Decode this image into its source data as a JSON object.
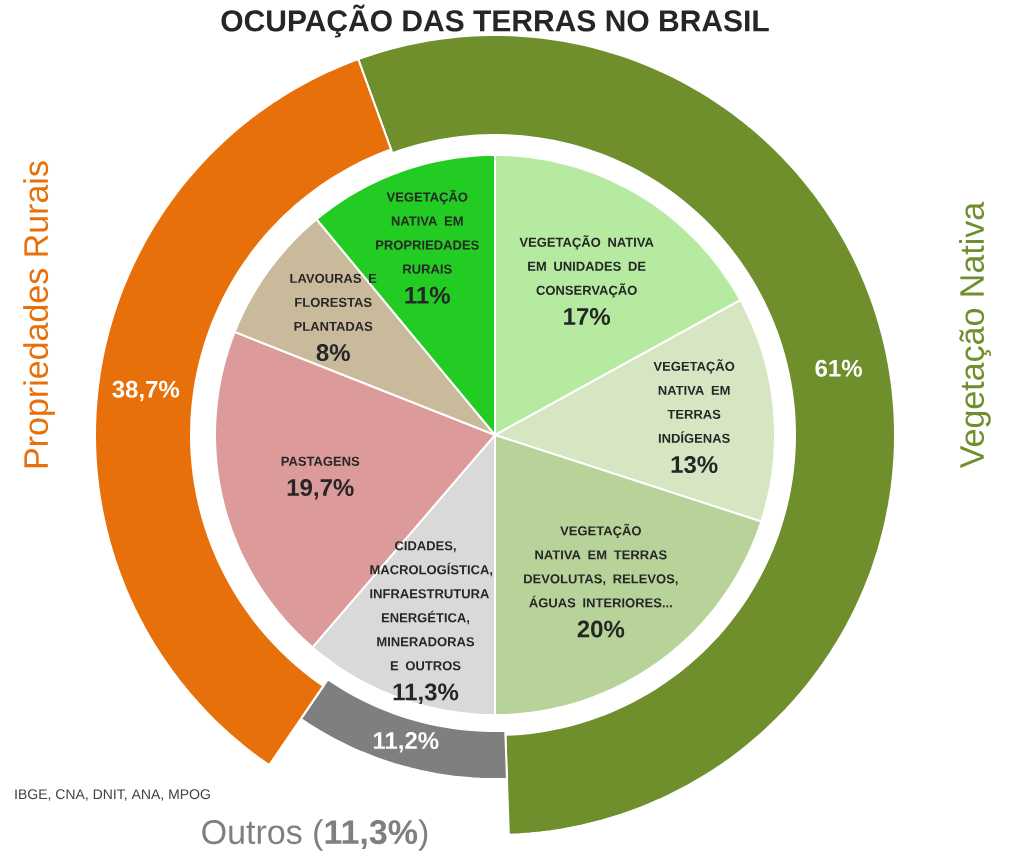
{
  "chart_data": [
    {
      "type": "pie",
      "title": "OCUPAÇÃO DAS TERRAS NO BRASIL",
      "categories": [
        "VEGETAÇÃO NATIVA EM UNIDADES DE CONSERVAÇÃO",
        "VEGETAÇÃO NATIVA EM TERRAS INDÍGENAS",
        "VEGETAÇÃO NATIVA EM TERRAS DEVOLUTAS, RELEVOS, ÁGUAS INTERIORES...",
        "CIDADES, MACROLOGÍSTICA, INFRAESTRUTURA ENERGÉTICA, MINERADORAS E OUTROS",
        "PASTAGENS",
        "LAVOURAS E FLORESTAS PLANTADAS",
        "VEGETAÇÃO NATIVA EM PROPRIEDADES RURAIS"
      ],
      "values": [
        17,
        13,
        20,
        11.3,
        19.7,
        8,
        11
      ],
      "value_labels": [
        "17%",
        "13%",
        "20%",
        "11,3%",
        "19,7%",
        "8%",
        "11%"
      ],
      "colors": [
        "#b5eaa0",
        "#d6e6c2",
        "#b8d39a",
        "#d9d9d9",
        "#dc9a9a",
        "#c9ba9b",
        "#22cc22"
      ]
    },
    {
      "type": "donut",
      "categories": [
        "Vegetação Nativa",
        "Outros (**11,3%**)",
        "Propriedades Rurais"
      ],
      "values": [
        61,
        11.2,
        38.7
      ],
      "value_labels": [
        "61%",
        "11,2%",
        "38,7%"
      ],
      "colors": [
        "#6e8f2c",
        "#7f7f7f",
        "#e8700a"
      ],
      "annotations": [
        "IBGE, CNA, DNIT, ANA, MPOG"
      ]
    }
  ]
}
